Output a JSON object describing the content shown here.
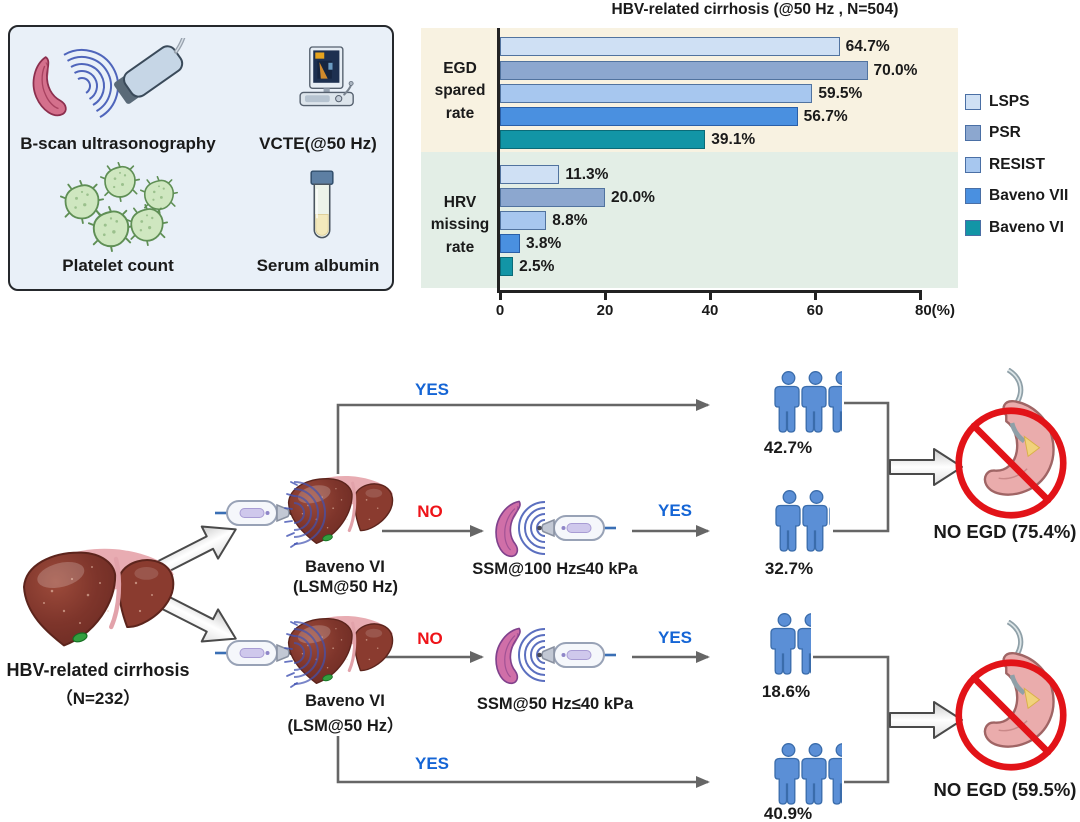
{
  "info_panel": {
    "items": [
      {
        "label": "B-scan ultrasonography",
        "icon": "spleen-ultrasound-icon"
      },
      {
        "label": "VCTE(@50 Hz)",
        "icon": "vcte-device-icon"
      },
      {
        "label": "Platelet count",
        "icon": "platelets-icon"
      },
      {
        "label": "Serum albumin",
        "icon": "serum-tube-icon"
      }
    ]
  },
  "chart_data": {
    "type": "bar",
    "orientation": "horizontal",
    "title": "HBV-related cirrhosis (@50 Hz , N=504)",
    "xlim": [
      0,
      80
    ],
    "x_ticks": [
      0,
      20,
      40,
      60,
      80
    ],
    "x_tick_labels": [
      "0",
      "20",
      "40",
      "60",
      "80(%)"
    ],
    "grid": false,
    "legend_position": "right",
    "legend": [
      {
        "name": "LSPS",
        "color": "#cfe0f4"
      },
      {
        "name": "PSR",
        "color": "#8ca7cf"
      },
      {
        "name": "RESIST",
        "color": "#a7c7ef"
      },
      {
        "name": "Baveno VII",
        "color": "#4a90e0"
      },
      {
        "name": "Baveno VI",
        "color": "#1295a6"
      }
    ],
    "groups": [
      {
        "category": "EGD\nspared\nrate",
        "background": "#f8f2e1",
        "values": [
          {
            "series": "LSPS",
            "value": 64.7,
            "label": "64.7%"
          },
          {
            "series": "PSR",
            "value": 70.0,
            "label": "70.0%"
          },
          {
            "series": "RESIST",
            "value": 59.5,
            "label": "59.5%"
          },
          {
            "series": "Baveno VII",
            "value": 56.7,
            "label": "56.7%"
          },
          {
            "series": "Baveno VI",
            "value": 39.1,
            "label": "39.1%"
          }
        ]
      },
      {
        "category": "HRV\nmissing\nrate",
        "background": "#e3eee6",
        "values": [
          {
            "series": "LSPS",
            "value": 11.3,
            "label": "11.3%"
          },
          {
            "series": "PSR",
            "value": 20.0,
            "label": "20.0%"
          },
          {
            "series": "RESIST",
            "value": 8.8,
            "label": "8.8%"
          },
          {
            "series": "Baveno VII",
            "value": 3.8,
            "label": "3.8%"
          },
          {
            "series": "Baveno VI",
            "value": 2.5,
            "label": "2.5%"
          }
        ]
      }
    ]
  },
  "flowchart": {
    "root": {
      "line1": "HBV-related cirrhosis",
      "line2": "（N=232）"
    },
    "top_branch": {
      "node_line1": "Baveno VI",
      "node_line2": "(LSM@50 Hz)",
      "yes_direct": "YES",
      "no": "NO",
      "ssm_label": "SSM@100 Hz≤40 kPa",
      "yes_ssm": "YES",
      "group_direct": {
        "people": 4,
        "pct": "42.7%"
      },
      "group_ssm": {
        "people": 3,
        "pct": "32.7%"
      },
      "result": "NO EGD (75.4%)"
    },
    "bottom_branch": {
      "node_line1": "Baveno VI",
      "node_line2": "(LSM@50 Hz）",
      "no": "NO",
      "ssm_label": "SSM@50 Hz≤40 kPa",
      "yes_ssm": "YES",
      "group_ssm": {
        "people": 2,
        "pct": "18.6%"
      },
      "yes_direct": "YES",
      "group_direct": {
        "people": 4,
        "pct": "40.9%"
      },
      "result": "NO EGD (59.5%)"
    },
    "colors": {
      "yes": "#1565d5",
      "no": "#ee1318",
      "connector": "#666666",
      "people": "#5b8fd6"
    }
  }
}
